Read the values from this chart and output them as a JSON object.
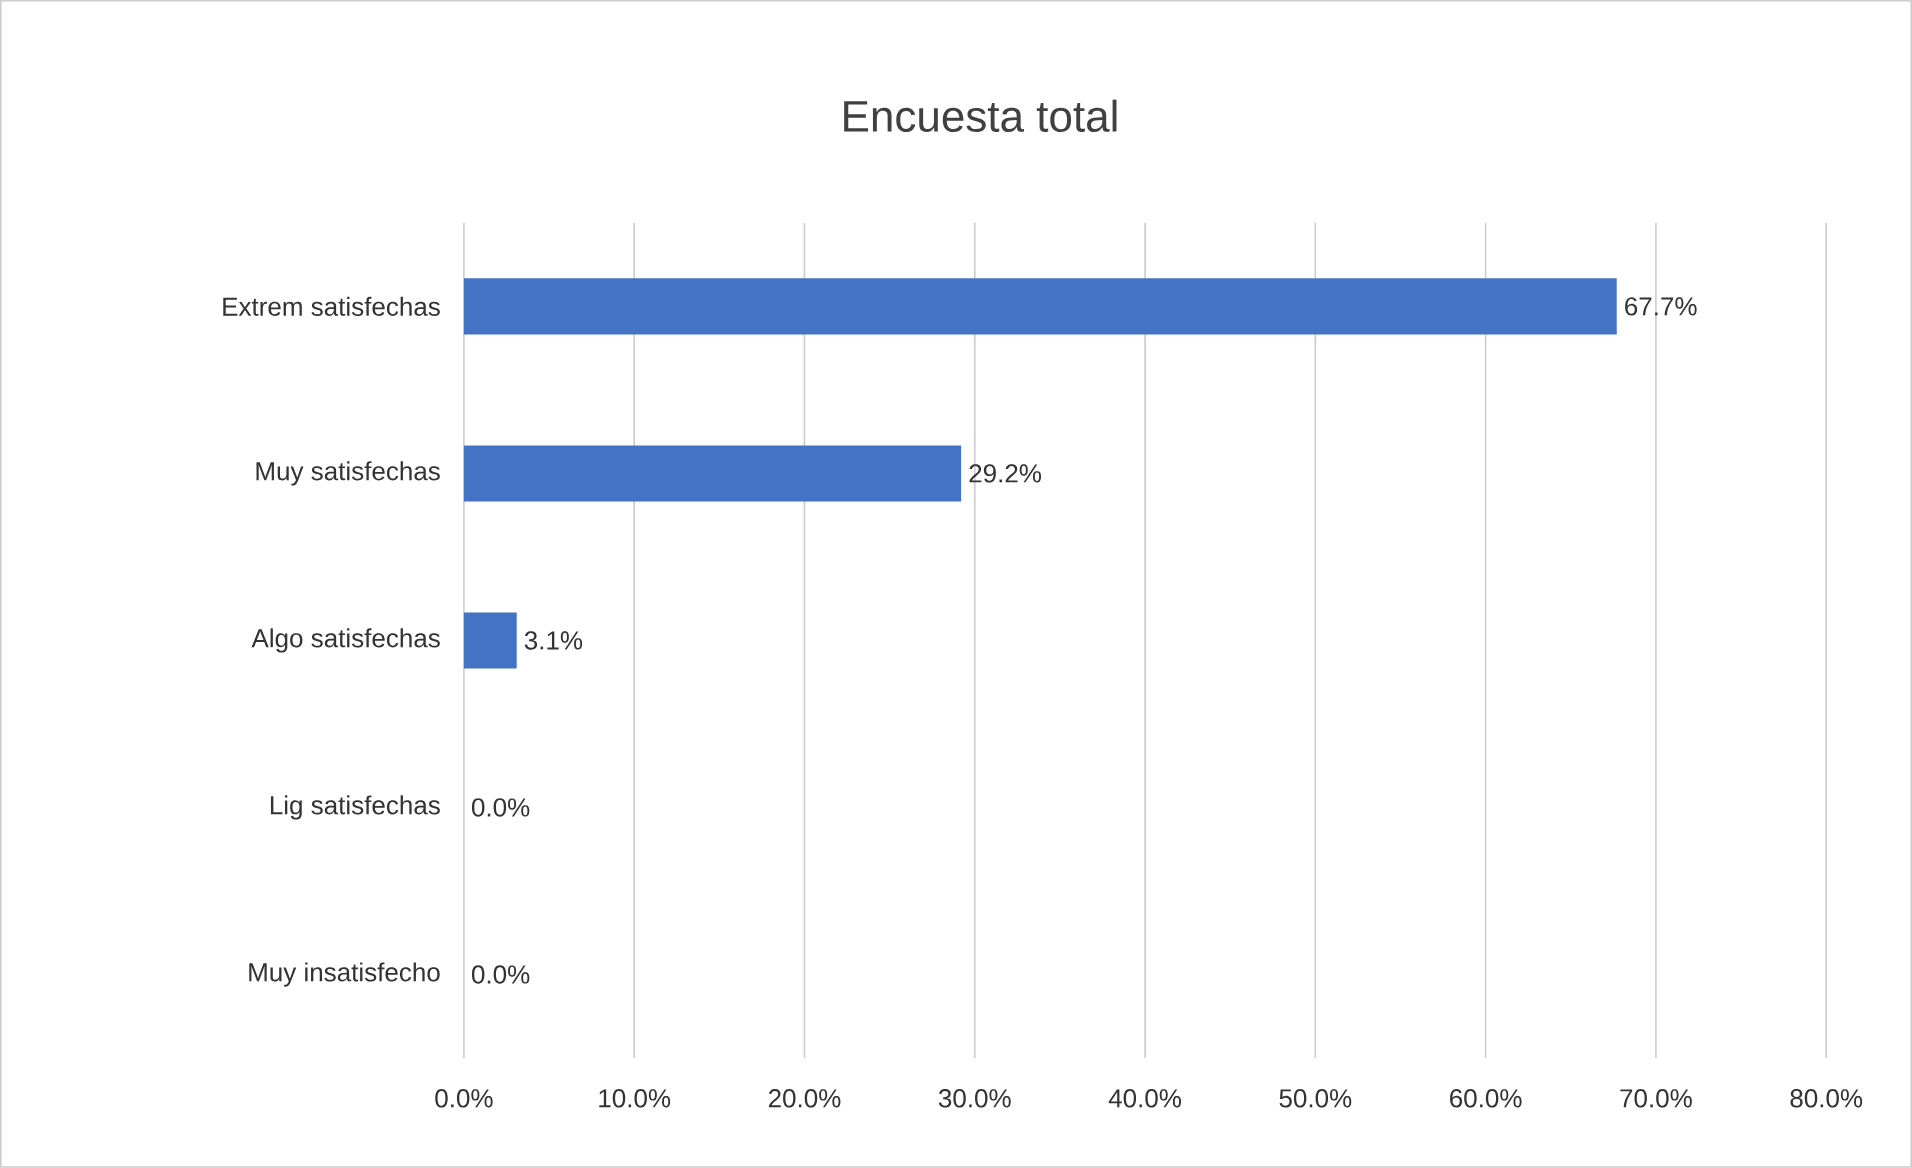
{
  "chart_data": {
    "type": "bar",
    "orientation": "horizontal",
    "title": "Encuesta total",
    "categories": [
      "Extrem satisfechas",
      "Muy satisfechas",
      "Algo satisfechas",
      "Lig satisfechas",
      "Muy insatisfecho"
    ],
    "values": [
      67.7,
      29.2,
      3.1,
      0.0,
      0.0
    ],
    "value_labels": [
      "67.7%",
      "29.2%",
      "3.1%",
      "0.0%",
      "0.0%"
    ],
    "color": "#4472c4",
    "xlim": [
      0,
      80
    ],
    "xticks": [
      {
        "value": 0,
        "label": "0.0%"
      },
      {
        "value": 10,
        "label": "10.0%"
      },
      {
        "value": 20,
        "label": "20.0%"
      },
      {
        "value": 30,
        "label": "30.0%"
      },
      {
        "value": 40,
        "label": "40.0%"
      },
      {
        "value": 50,
        "label": "50.0%"
      },
      {
        "value": 60,
        "label": "60.0%"
      },
      {
        "value": 70,
        "label": "70.0%"
      },
      {
        "value": 80,
        "label": "80.0%"
      }
    ],
    "grid": "x"
  }
}
